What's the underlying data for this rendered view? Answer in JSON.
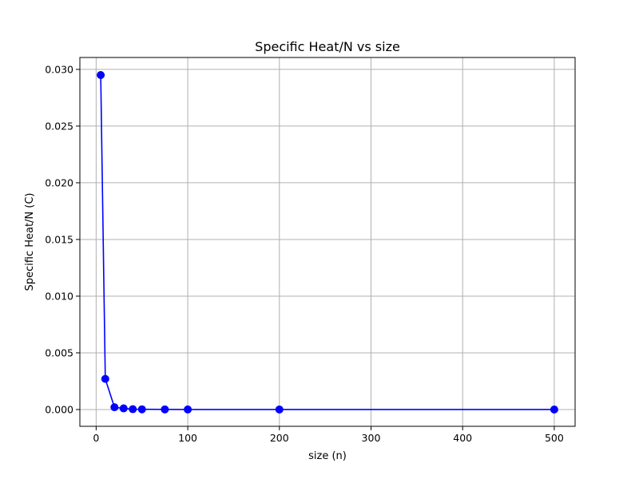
{
  "colors": {
    "series": "#0000ff",
    "grid": "#b0b0b0",
    "background": "#ffffff"
  },
  "chart_data": {
    "type": "line",
    "title": "Specific Heat/N vs size",
    "xlabel": "size (n)",
    "ylabel": "Specific Heat/N (C)",
    "xlim": [
      -17.75,
      522.75
    ],
    "ylim": [
      -0.00148,
      0.03105
    ],
    "grid": true,
    "marker": "circle",
    "xticks": [
      0,
      100,
      200,
      300,
      400,
      500
    ],
    "xtick_labels": [
      "0",
      "100",
      "200",
      "300",
      "400",
      "500"
    ],
    "yticks": [
      0.0,
      0.005,
      0.01,
      0.015,
      0.02,
      0.025,
      0.03
    ],
    "ytick_labels": [
      "0.000",
      "0.005",
      "0.010",
      "0.015",
      "0.020",
      "0.025",
      "0.030"
    ],
    "series": [
      {
        "x": [
          5,
          10,
          20,
          30,
          40,
          50,
          75,
          100,
          200,
          500
        ],
        "y": [
          0.0295,
          0.0027,
          0.0002,
          0.0001,
          3e-05,
          2e-05,
          1e-05,
          5e-06,
          1e-06,
          0.0
        ]
      }
    ]
  }
}
